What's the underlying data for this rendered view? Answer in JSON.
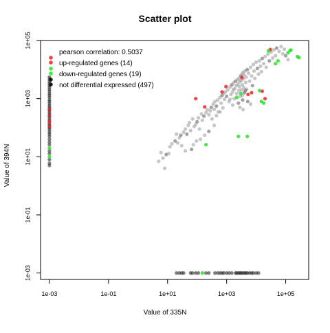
{
  "chart_data": {
    "type": "scatter",
    "title": "Scatter plot",
    "xlabel": "Value of 335N",
    "ylabel": "Value of 394N",
    "scale": "log10",
    "xlim": [
      0.0005,
      600000
    ],
    "ylim": [
      0.0006,
      100000
    ],
    "x_ticks": [
      "1e-03",
      "1e-01",
      "1e+01",
      "1e+03",
      "1e+05"
    ],
    "y_ticks": [
      "1e-03",
      "1e-01",
      "1e+01",
      "1e+03",
      "1e+05"
    ],
    "x_tick_values": [
      0.001,
      0.1,
      10,
      1000,
      100000
    ],
    "y_tick_values": [
      0.001,
      0.1,
      10,
      1000,
      100000
    ],
    "grid": false,
    "legend": {
      "position": "top-left",
      "correlation_text": "pearson correlation: 0.5037",
      "entries": [
        {
          "label": "up-regulated genes (14)",
          "color": "#e8262a"
        },
        {
          "label": "down-regulated genes (19)",
          "color": "#27e227"
        },
        {
          "label": "not differential expressed (497)",
          "color": "#000000"
        }
      ]
    },
    "colors": {
      "not_de_dark": "#1a1a1a",
      "not_de_light": "#a0a0a0",
      "up": "#e8262a",
      "down": "#27e227",
      "frame": "#000000"
    },
    "series": [
      {
        "name": "up-regulated genes (14)",
        "color": "#e8262a",
        "points": [
          [
            0.001,
            430
          ],
          [
            0.001,
            260
          ],
          [
            0.001,
            160
          ],
          [
            0.001,
            110
          ],
          [
            90,
            1000
          ],
          [
            180,
            520
          ],
          [
            700,
            1700
          ],
          [
            950,
            2600
          ],
          [
            3300,
            5300
          ],
          [
            5300,
            1400
          ],
          [
            7000,
            1600
          ],
          [
            16000,
            1800
          ],
          [
            20000,
            1000
          ],
          [
            30000,
            49000
          ]
        ]
      },
      {
        "name": "down-regulated genes (19)",
        "color": "#27e227",
        "points": [
          [
            0.001,
            20
          ],
          [
            0.001,
            10
          ],
          [
            150,
            0.001
          ],
          [
            200,
            26
          ],
          [
            2200,
            1100
          ],
          [
            2500,
            50
          ],
          [
            3000,
            1500
          ],
          [
            5000,
            50
          ],
          [
            13000,
            1900
          ],
          [
            15000,
            800
          ],
          [
            18000,
            700
          ],
          [
            26000,
            44000
          ],
          [
            45000,
            16000
          ],
          [
            55000,
            20000
          ],
          [
            120000,
            38000
          ],
          [
            140000,
            45000
          ],
          [
            150000,
            47000
          ],
          [
            250000,
            28000
          ],
          [
            280000,
            26000
          ]
        ]
      },
      {
        "name": "not differential expressed (497)",
        "color": "#000000",
        "points": [
          [
            0.001,
            5500
          ],
          [
            0.001,
            4700
          ],
          [
            0.001,
            4000
          ],
          [
            0.001,
            3400
          ],
          [
            0.001,
            2900
          ],
          [
            0.001,
            2500
          ],
          [
            0.001,
            2100
          ],
          [
            0.001,
            1800
          ],
          [
            0.001,
            1500
          ],
          [
            0.001,
            1300
          ],
          [
            0.001,
            1100
          ],
          [
            0.001,
            900
          ],
          [
            0.001,
            780
          ],
          [
            0.001,
            660
          ],
          [
            0.001,
            560
          ],
          [
            0.001,
            480
          ],
          [
            0.001,
            400
          ],
          [
            0.001,
            340
          ],
          [
            0.001,
            290
          ],
          [
            0.001,
            240
          ],
          [
            0.001,
            200
          ],
          [
            0.001,
            170
          ],
          [
            0.001,
            140
          ],
          [
            0.001,
            120
          ],
          [
            0.001,
            100
          ],
          [
            0.001,
            85
          ],
          [
            0.001,
            70
          ],
          [
            0.001,
            60
          ],
          [
            0.001,
            50
          ],
          [
            0.001,
            40
          ],
          [
            0.001,
            32
          ],
          [
            0.001,
            26
          ],
          [
            0.001,
            16
          ],
          [
            0.001,
            13
          ],
          [
            0.001,
            8
          ],
          [
            0.001,
            6
          ],
          [
            0.001,
            5
          ],
          [
            5,
            7
          ],
          [
            7,
            9
          ],
          [
            6,
            14
          ],
          [
            9,
            12
          ],
          [
            11,
            13
          ],
          [
            8,
            4
          ],
          [
            12,
            22
          ],
          [
            14,
            28
          ],
          [
            18,
            35
          ],
          [
            20,
            60
          ],
          [
            25,
            45
          ],
          [
            30,
            24
          ],
          [
            22,
            30
          ],
          [
            28,
            55
          ],
          [
            35,
            70
          ],
          [
            40,
            90
          ],
          [
            50,
            120
          ],
          [
            60,
            80
          ],
          [
            45,
            60
          ],
          [
            55,
            150
          ],
          [
            70,
            200
          ],
          [
            80,
            110
          ],
          [
            90,
            130
          ],
          [
            100,
            160
          ],
          [
            110,
            220
          ],
          [
            120,
            90
          ],
          [
            140,
            300
          ],
          [
            150,
            180
          ],
          [
            170,
            250
          ],
          [
            200,
            330
          ],
          [
            220,
            420
          ],
          [
            250,
            280
          ],
          [
            280,
            380
          ],
          [
            300,
            500
          ],
          [
            320,
            200
          ],
          [
            350,
            650
          ],
          [
            380,
            430
          ],
          [
            400,
            800
          ],
          [
            450,
            550
          ],
          [
            500,
            900
          ],
          [
            520,
            350
          ],
          [
            600,
            1100
          ],
          [
            650,
            700
          ],
          [
            700,
            1300
          ],
          [
            750,
            480
          ],
          [
            800,
            1500
          ],
          [
            850,
            950
          ],
          [
            900,
            1700
          ],
          [
            1000,
            1200
          ],
          [
            1100,
            2000
          ],
          [
            1200,
            800
          ],
          [
            1300,
            2500
          ],
          [
            1400,
            1400
          ],
          [
            1500,
            3000
          ],
          [
            1600,
            1700
          ],
          [
            1700,
            3500
          ],
          [
            1800,
            1000
          ],
          [
            1900,
            2200
          ],
          [
            2000,
            4000
          ],
          [
            2100,
            2800
          ],
          [
            2200,
            1500
          ],
          [
            2300,
            4500
          ],
          [
            2400,
            3200
          ],
          [
            2500,
            700
          ],
          [
            2600,
            5000
          ],
          [
            2700,
            2600
          ],
          [
            2800,
            3800
          ],
          [
            2900,
            1200
          ],
          [
            3000,
            6000
          ],
          [
            3100,
            4200
          ],
          [
            3200,
            2000
          ],
          [
            3300,
            7000
          ],
          [
            3400,
            3000
          ],
          [
            3500,
            900
          ],
          [
            3600,
            8000
          ],
          [
            3700,
            4800
          ],
          [
            3800,
            2400
          ],
          [
            3900,
            6500
          ],
          [
            4000,
            1600
          ],
          [
            4200,
            9000
          ],
          [
            4400,
            3600
          ],
          [
            4600,
            5500
          ],
          [
            4800,
            2100
          ],
          [
            5000,
            10000
          ],
          [
            5500,
            7500
          ],
          [
            6000,
            4000
          ],
          [
            6500,
            12000
          ],
          [
            7000,
            6000
          ],
          [
            7500,
            2800
          ],
          [
            8000,
            15000
          ],
          [
            8500,
            9000
          ],
          [
            9000,
            5000
          ],
          [
            10000,
            18000
          ],
          [
            11000,
            11000
          ],
          [
            12000,
            7000
          ],
          [
            13000,
            20000
          ],
          [
            14000,
            13000
          ],
          [
            15000,
            8500
          ],
          [
            16000,
            24000
          ],
          [
            18000,
            16000
          ],
          [
            20000,
            28000
          ],
          [
            22000,
            12000
          ],
          [
            25000,
            34000
          ],
          [
            28000,
            20000
          ],
          [
            32000,
            40000
          ],
          [
            36000,
            25000
          ],
          [
            40000,
            48000
          ],
          [
            45000,
            30000
          ],
          [
            50000,
            55000
          ],
          [
            60000,
            42000
          ],
          [
            70000,
            62000
          ],
          [
            80000,
            35000
          ],
          [
            90000,
            50000
          ],
          [
            100000,
            30000
          ],
          [
            120000,
            22000
          ],
          [
            1300,
            950
          ],
          [
            2600,
            1900
          ],
          [
            3400,
            1300
          ],
          [
            4300,
            1900
          ],
          [
            1700,
            2100
          ],
          [
            600,
            350
          ],
          [
            450,
            260
          ],
          [
            380,
            120
          ],
          [
            250,
            75
          ],
          [
            180,
            55
          ],
          [
            130,
            40
          ],
          [
            95,
            35
          ],
          [
            75,
            26
          ],
          [
            65,
            18
          ],
          [
            40,
            16
          ],
          [
            1600,
            600
          ],
          [
            2800,
            500
          ],
          [
            3600,
            420
          ],
          [
            5200,
            800
          ],
          [
            6500,
            650
          ],
          [
            20,
            0.001
          ],
          [
            25,
            0.001
          ],
          [
            30,
            0.001
          ],
          [
            35,
            0.001
          ],
          [
            60,
            0.001
          ],
          [
            70,
            0.001
          ],
          [
            90,
            0.001
          ],
          [
            110,
            0.001
          ],
          [
            200,
            0.001
          ],
          [
            250,
            0.001
          ],
          [
            400,
            0.001
          ],
          [
            500,
            0.001
          ],
          [
            600,
            0.001
          ],
          [
            700,
            0.001
          ],
          [
            800,
            0.001
          ],
          [
            1000,
            0.001
          ],
          [
            1200,
            0.001
          ],
          [
            1500,
            0.001
          ],
          [
            2000,
            0.001
          ],
          [
            2200,
            0.001
          ],
          [
            2500,
            0.001
          ],
          [
            2800,
            0.001
          ],
          [
            3100,
            0.001
          ],
          [
            3500,
            0.001
          ],
          [
            4000,
            0.001
          ],
          [
            4500,
            0.001
          ],
          [
            5000,
            0.001
          ],
          [
            6000,
            0.001
          ],
          [
            7000,
            0.001
          ],
          [
            8000,
            0.001
          ],
          [
            10000,
            0.001
          ],
          [
            12000,
            0.001
          ]
        ]
      }
    ]
  }
}
